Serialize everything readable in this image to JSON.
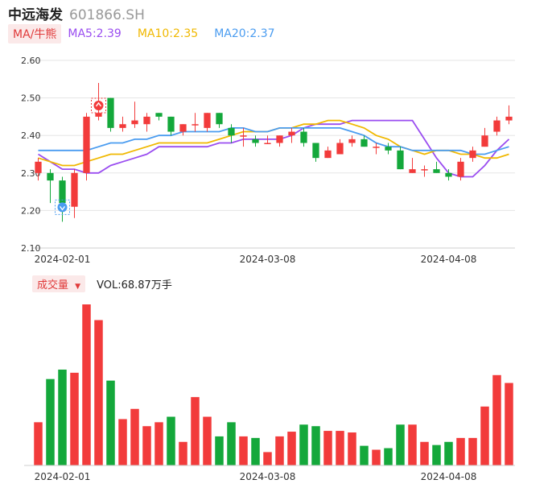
{
  "header": {
    "name": "中远海发",
    "code": "601866.SH"
  },
  "ma_legend": {
    "toggle_label": "MA/牛熊",
    "ma5": "MA5:2.39",
    "ma10": "MA10:2.35",
    "ma20": "MA20:2.37"
  },
  "volume_legend": {
    "toggle_label": "成交量",
    "vol_text": "VOL:68.87万手"
  },
  "colors": {
    "up": "#f23b3b",
    "down": "#14a83b",
    "ma5": "#9a4df0",
    "ma10": "#f0b800",
    "ma20": "#4a9cf0",
    "grid": "#e5e5e5"
  },
  "chart_data": [
    {
      "type": "candlestick",
      "y_ticks": [
        "2.60",
        "2.50",
        "2.40",
        "2.30",
        "2.20",
        "2.10"
      ],
      "ylim": [
        2.1,
        2.6
      ],
      "x_tick_labels": [
        {
          "index": 2,
          "label": "2024-02-01"
        },
        {
          "index": 19,
          "label": "2024-03-08"
        },
        {
          "index": 34,
          "label": "2024-04-08"
        }
      ],
      "candles": [
        {
          "o": 2.3,
          "c": 2.33,
          "h": 2.34,
          "l": 2.28
        },
        {
          "o": 2.3,
          "c": 2.28,
          "h": 2.31,
          "l": 2.22
        },
        {
          "o": 2.28,
          "c": 2.22,
          "h": 2.29,
          "l": 2.17
        },
        {
          "o": 2.21,
          "c": 2.3,
          "h": 2.31,
          "l": 2.18
        },
        {
          "o": 2.3,
          "c": 2.45,
          "h": 2.46,
          "l": 2.28
        },
        {
          "o": 2.45,
          "c": 2.46,
          "h": 2.54,
          "l": 2.44
        },
        {
          "o": 2.5,
          "c": 2.42,
          "h": 2.5,
          "l": 2.41
        },
        {
          "o": 2.42,
          "c": 2.43,
          "h": 2.45,
          "l": 2.41
        },
        {
          "o": 2.43,
          "c": 2.44,
          "h": 2.49,
          "l": 2.42
        },
        {
          "o": 2.43,
          "c": 2.45,
          "h": 2.46,
          "l": 2.41
        },
        {
          "o": 2.46,
          "c": 2.45,
          "h": 2.46,
          "l": 2.44
        },
        {
          "o": 2.45,
          "c": 2.41,
          "h": 2.45,
          "l": 2.4
        },
        {
          "o": 2.41,
          "c": 2.43,
          "h": 2.43,
          "l": 2.4
        },
        {
          "o": 2.43,
          "c": 2.43,
          "h": 2.46,
          "l": 2.41
        },
        {
          "o": 2.42,
          "c": 2.46,
          "h": 2.46,
          "l": 2.41
        },
        {
          "o": 2.46,
          "c": 2.43,
          "h": 2.46,
          "l": 2.42
        },
        {
          "o": 2.42,
          "c": 2.4,
          "h": 2.43,
          "l": 2.38
        },
        {
          "o": 2.4,
          "c": 2.4,
          "h": 2.42,
          "l": 2.37
        },
        {
          "o": 2.39,
          "c": 2.38,
          "h": 2.4,
          "l": 2.37
        },
        {
          "o": 2.38,
          "c": 2.38,
          "h": 2.4,
          "l": 2.38
        },
        {
          "o": 2.38,
          "c": 2.4,
          "h": 2.4,
          "l": 2.37
        },
        {
          "o": 2.4,
          "c": 2.41,
          "h": 2.42,
          "l": 2.38
        },
        {
          "o": 2.41,
          "c": 2.38,
          "h": 2.42,
          "l": 2.37
        },
        {
          "o": 2.38,
          "c": 2.34,
          "h": 2.38,
          "l": 2.33
        },
        {
          "o": 2.34,
          "c": 2.36,
          "h": 2.37,
          "l": 2.34
        },
        {
          "o": 2.35,
          "c": 2.38,
          "h": 2.39,
          "l": 2.35
        },
        {
          "o": 2.38,
          "c": 2.39,
          "h": 2.4,
          "l": 2.37
        },
        {
          "o": 2.39,
          "c": 2.37,
          "h": 2.4,
          "l": 2.37
        },
        {
          "o": 2.37,
          "c": 2.37,
          "h": 2.38,
          "l": 2.35
        },
        {
          "o": 2.37,
          "c": 2.36,
          "h": 2.38,
          "l": 2.35
        },
        {
          "o": 2.36,
          "c": 2.31,
          "h": 2.37,
          "l": 2.31
        },
        {
          "o": 2.3,
          "c": 2.31,
          "h": 2.34,
          "l": 2.3
        },
        {
          "o": 2.31,
          "c": 2.31,
          "h": 2.32,
          "l": 2.29
        },
        {
          "o": 2.31,
          "c": 2.3,
          "h": 2.33,
          "l": 2.3
        },
        {
          "o": 2.3,
          "c": 2.29,
          "h": 2.31,
          "l": 2.28
        },
        {
          "o": 2.29,
          "c": 2.33,
          "h": 2.34,
          "l": 2.28
        },
        {
          "o": 2.34,
          "c": 2.36,
          "h": 2.37,
          "l": 2.33
        },
        {
          "o": 2.37,
          "c": 2.4,
          "h": 2.42,
          "l": 2.37
        },
        {
          "o": 2.41,
          "c": 2.44,
          "h": 2.45,
          "l": 2.4
        },
        {
          "o": 2.44,
          "c": 2.45,
          "h": 2.48,
          "l": 2.43
        }
      ],
      "ma_series": [
        {
          "name": "MA5",
          "values": [
            2.35,
            2.33,
            2.31,
            2.31,
            2.3,
            2.3,
            2.32,
            2.33,
            2.34,
            2.35,
            2.37,
            2.37,
            2.37,
            2.37,
            2.37,
            2.38,
            2.38,
            2.39,
            2.39,
            2.39,
            2.39,
            2.4,
            2.42,
            2.43,
            2.43,
            2.43,
            2.44,
            2.44,
            2.44,
            2.44,
            2.44,
            2.44,
            2.39,
            2.34,
            2.3,
            2.29,
            2.29,
            2.32,
            2.36,
            2.39
          ]
        },
        {
          "name": "MA10",
          "values": [
            2.34,
            2.33,
            2.32,
            2.32,
            2.33,
            2.34,
            2.35,
            2.35,
            2.36,
            2.37,
            2.38,
            2.38,
            2.38,
            2.38,
            2.38,
            2.39,
            2.4,
            2.41,
            2.41,
            2.41,
            2.42,
            2.42,
            2.43,
            2.43,
            2.44,
            2.44,
            2.43,
            2.42,
            2.4,
            2.39,
            2.37,
            2.36,
            2.35,
            2.36,
            2.36,
            2.35,
            2.35,
            2.34,
            2.34,
            2.35
          ]
        },
        {
          "name": "MA20",
          "values": [
            2.36,
            2.36,
            2.36,
            2.36,
            2.36,
            2.37,
            2.38,
            2.38,
            2.39,
            2.39,
            2.4,
            2.4,
            2.41,
            2.41,
            2.41,
            2.41,
            2.42,
            2.42,
            2.41,
            2.41,
            2.42,
            2.42,
            2.42,
            2.42,
            2.42,
            2.42,
            2.41,
            2.4,
            2.38,
            2.37,
            2.37,
            2.36,
            2.36,
            2.36,
            2.36,
            2.36,
            2.35,
            2.35,
            2.36,
            2.37
          ]
        }
      ],
      "markers": [
        {
          "index": 2,
          "icon": "down-arrow-icon"
        },
        {
          "index": 5,
          "icon": "up-arrow-icon"
        }
      ]
    },
    {
      "type": "bar",
      "title": "成交量",
      "series_name": "VOL",
      "values": [
        55,
        110,
        122,
        118,
        205,
        185,
        108,
        59,
        72,
        50,
        55,
        62,
        30,
        87,
        62,
        37,
        55,
        37,
        35,
        17,
        37,
        43,
        52,
        50,
        44,
        44,
        42,
        25,
        20,
        22,
        52,
        52,
        30,
        26,
        30,
        35,
        35,
        75,
        115,
        105
      ],
      "up": [
        true,
        false,
        false,
        true,
        true,
        true,
        false,
        true,
        true,
        true,
        true,
        false,
        true,
        true,
        true,
        false,
        false,
        true,
        false,
        true,
        true,
        true,
        false,
        false,
        true,
        true,
        true,
        false,
        true,
        false,
        false,
        true,
        true,
        false,
        false,
        true,
        true,
        true,
        true,
        true
      ]
    }
  ]
}
